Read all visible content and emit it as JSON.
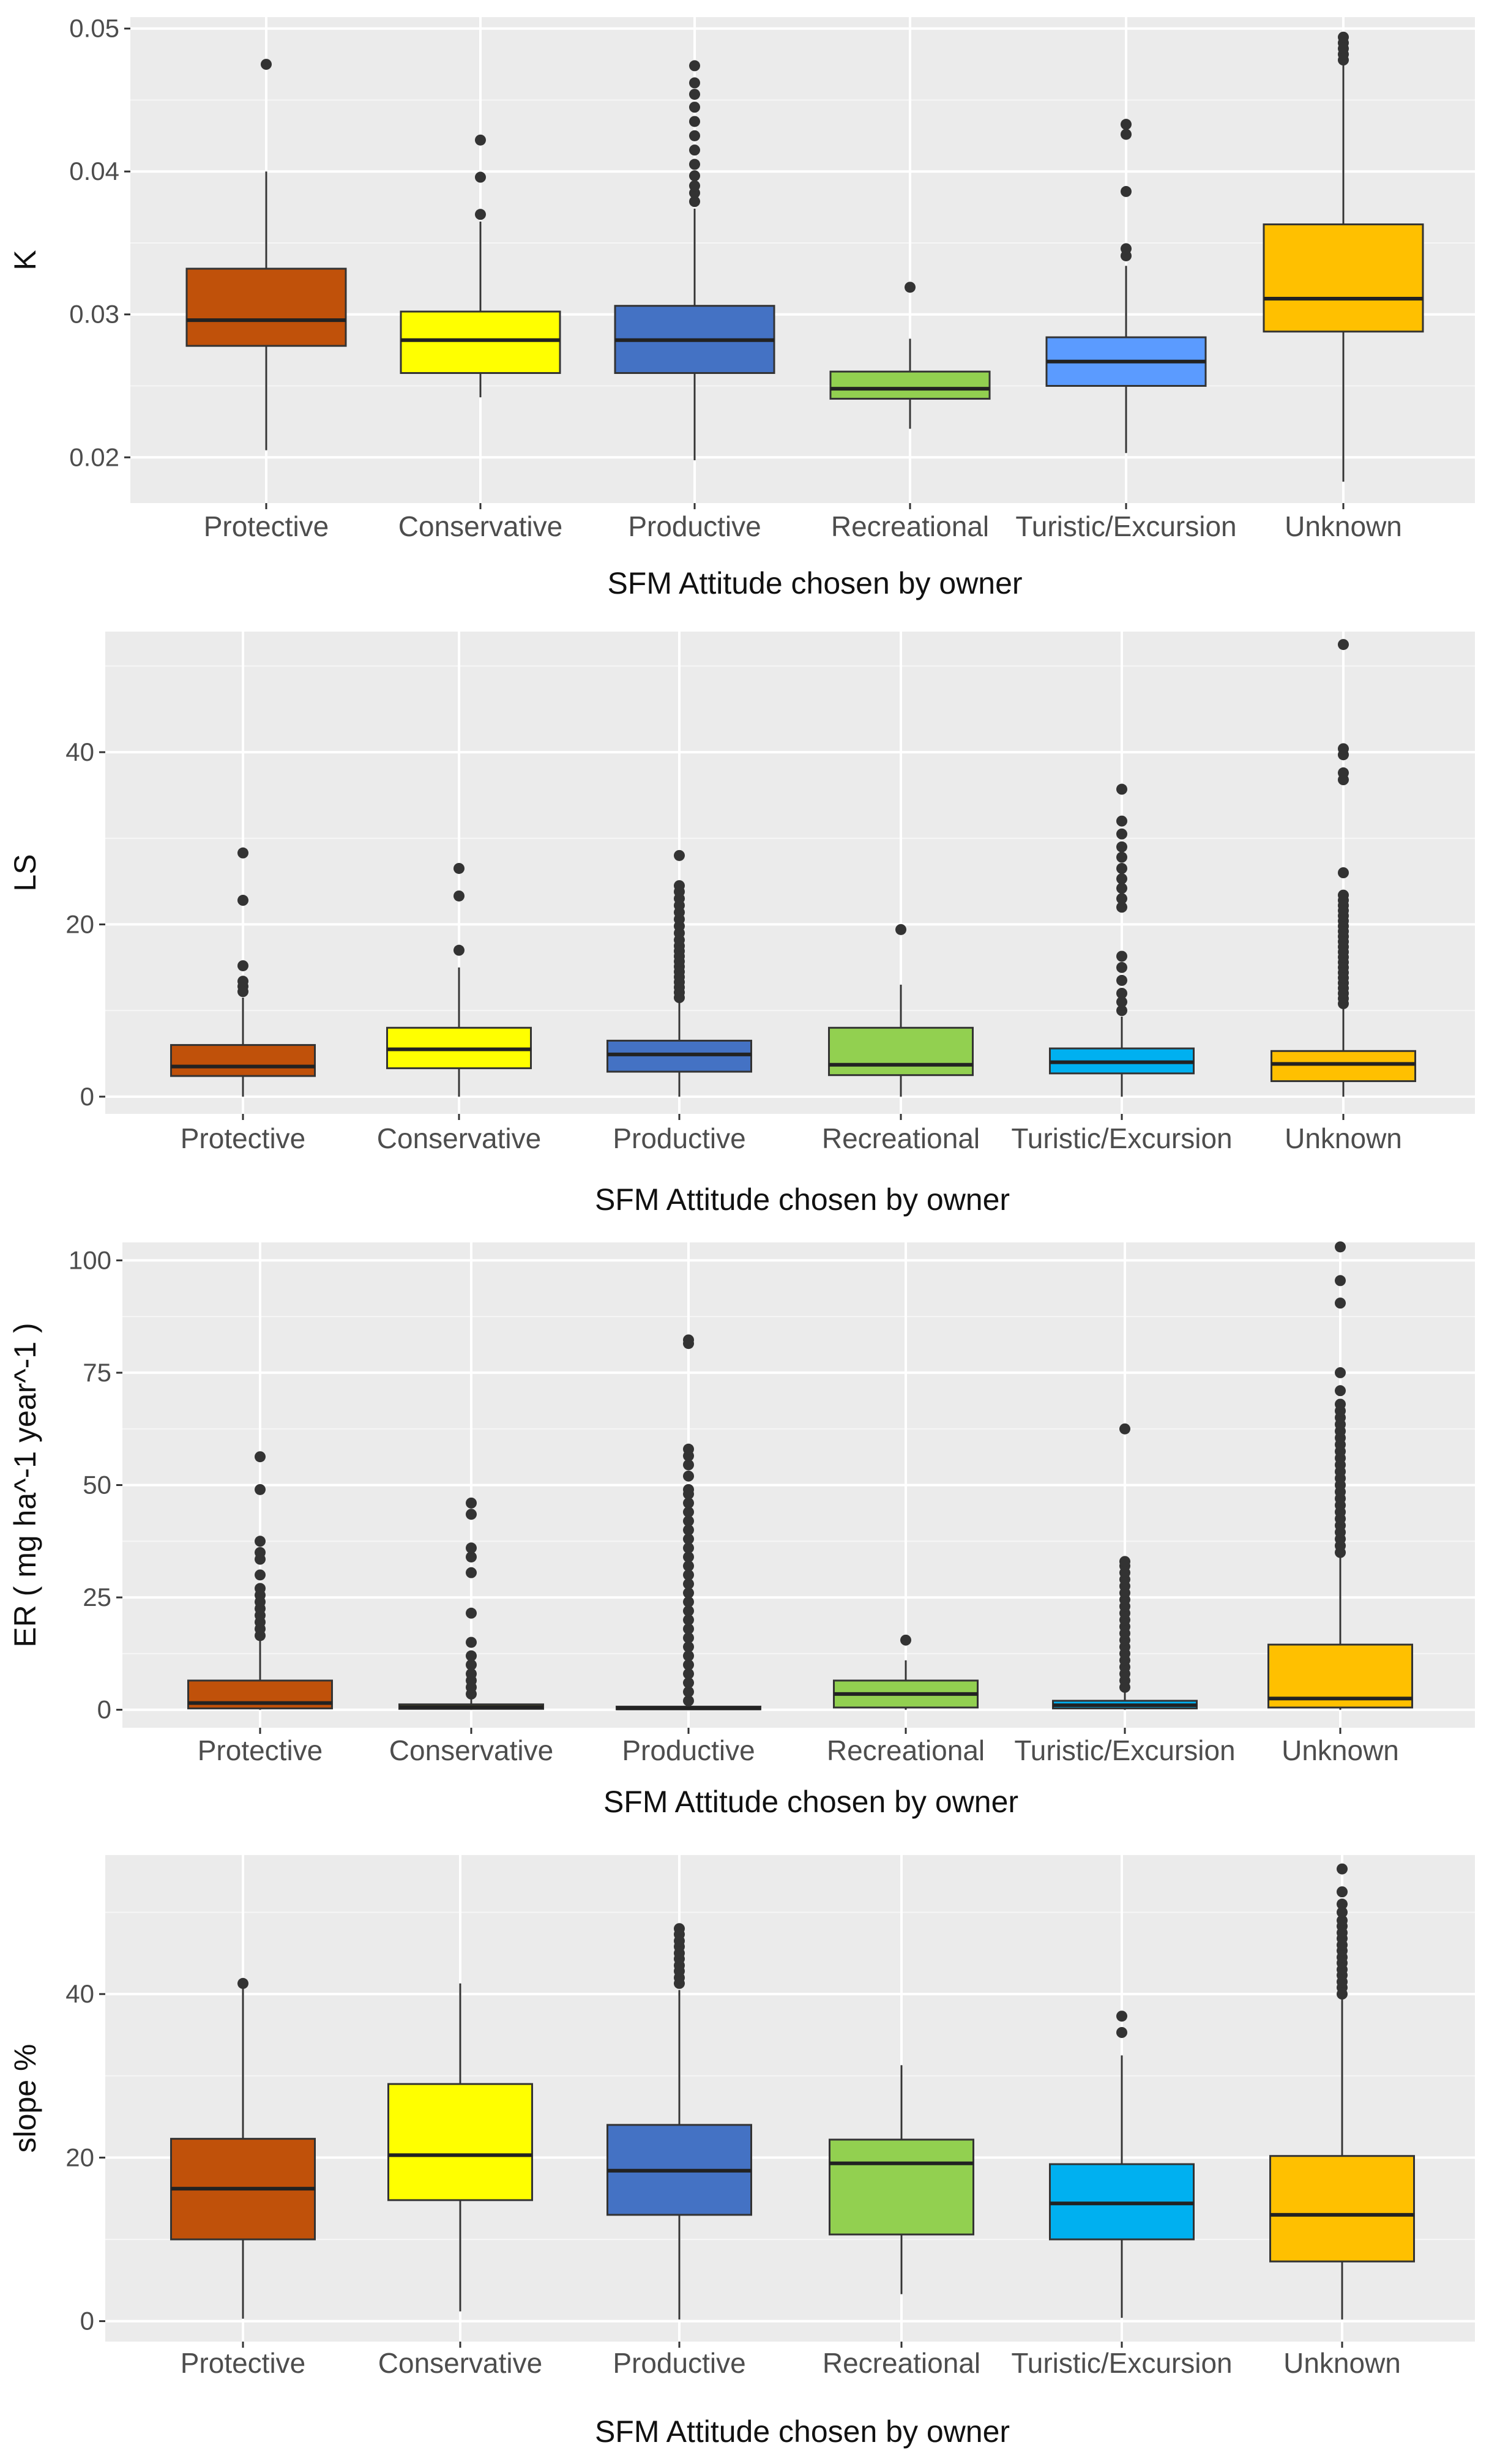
{
  "chart_data": [
    {
      "type": "box",
      "ylabel": "K",
      "xlabel": "SFM Attitude chosen by owner",
      "categories": [
        "Protective",
        "Conservative",
        "Productive",
        "Recreational",
        "Turistic/Excursion",
        "Unknown"
      ],
      "colors": [
        "#c0510a",
        "#ffff00",
        "#4472c4",
        "#92d050",
        "#5b9bff",
        "#ffc000"
      ],
      "ylim": [
        0.0168,
        0.0508
      ],
      "yticks": [
        0.02,
        0.03,
        0.04,
        0.05
      ],
      "yticklabels": [
        "0.02",
        "0.03",
        "0.04",
        "0.05"
      ],
      "boxes": [
        {
          "q1": 0.0278,
          "median": 0.0296,
          "q3": 0.0332,
          "whisker_low": 0.0205,
          "whisker_high": 0.04,
          "outliers": [
            0.0475
          ]
        },
        {
          "q1": 0.0259,
          "median": 0.0282,
          "q3": 0.0302,
          "whisker_low": 0.0242,
          "whisker_high": 0.0365,
          "outliers": [
            0.037,
            0.0396,
            0.0422
          ]
        },
        {
          "q1": 0.0259,
          "median": 0.0282,
          "q3": 0.0306,
          "whisker_low": 0.0198,
          "whisker_high": 0.0374,
          "outliers": [
            0.0379,
            0.0385,
            0.039,
            0.0397,
            0.0405,
            0.0415,
            0.0425,
            0.0435,
            0.0445,
            0.0454,
            0.0462,
            0.0474
          ]
        },
        {
          "q1": 0.0241,
          "median": 0.0248,
          "q3": 0.026,
          "whisker_low": 0.022,
          "whisker_high": 0.0283,
          "outliers": [
            0.0319
          ]
        },
        {
          "q1": 0.025,
          "median": 0.0267,
          "q3": 0.0284,
          "whisker_low": 0.0203,
          "whisker_high": 0.0334,
          "outliers": [
            0.0341,
            0.0346,
            0.0386,
            0.0426,
            0.0433
          ]
        },
        {
          "q1": 0.0288,
          "median": 0.0311,
          "q3": 0.0363,
          "whisker_low": 0.0183,
          "whisker_high": 0.0475,
          "outliers": [
            0.0478,
            0.0482,
            0.0486,
            0.049,
            0.0494
          ]
        }
      ]
    },
    {
      "type": "box",
      "ylabel": "LS",
      "xlabel": "SFM Attitude chosen by owner",
      "categories": [
        "Protective",
        "Conservative",
        "Productive",
        "Recreational",
        "Turistic/Excursion",
        "Unknown"
      ],
      "colors": [
        "#c0510a",
        "#ffff00",
        "#4472c4",
        "#92d050",
        "#00b0f0",
        "#ffc000"
      ],
      "ylim": [
        -2,
        54
      ],
      "yticks": [
        0,
        20,
        40
      ],
      "yticklabels": [
        "0",
        "20",
        "40"
      ],
      "boxes": [
        {
          "q1": 2.4,
          "median": 3.5,
          "q3": 6.0,
          "whisker_low": 0,
          "whisker_high": 11.5,
          "outliers": [
            12.2,
            12.8,
            13.4,
            15.2,
            22.8,
            28.3
          ]
        },
        {
          "q1": 3.3,
          "median": 5.5,
          "q3": 8.0,
          "whisker_low": 0,
          "whisker_high": 15,
          "outliers": [
            17.0,
            23.3,
            26.5
          ]
        },
        {
          "q1": 2.9,
          "median": 4.9,
          "q3": 6.5,
          "whisker_low": 0,
          "whisker_high": 11,
          "outliers": [
            11.5,
            12.1,
            12.7,
            13.3,
            13.9,
            14.5,
            15.1,
            15.7,
            16.3,
            16.9,
            17.5,
            18.2,
            19.0,
            19.8,
            20.6,
            21.4,
            22.2,
            23.0,
            23.8,
            24.5,
            28.0
          ]
        },
        {
          "q1": 2.5,
          "median": 3.7,
          "q3": 8.0,
          "whisker_low": 0,
          "whisker_high": 13,
          "outliers": [
            19.4
          ]
        },
        {
          "q1": 2.7,
          "median": 4.0,
          "q3": 5.6,
          "whisker_low": 0,
          "whisker_high": 9.3,
          "outliers": [
            10.0,
            11.0,
            12.0,
            13.5,
            15.0,
            16.3,
            22.0,
            23.0,
            24.2,
            25.3,
            26.5,
            27.8,
            29.0,
            30.5,
            32.0,
            35.7
          ]
        },
        {
          "q1": 1.8,
          "median": 3.8,
          "q3": 5.3,
          "whisker_low": 0,
          "whisker_high": 10.4,
          "outliers": [
            10.8,
            11.4,
            12.0,
            12.6,
            13.2,
            13.8,
            14.4,
            15.0,
            15.6,
            16.2,
            16.8,
            17.4,
            18.0,
            18.6,
            19.2,
            19.8,
            20.4,
            21.0,
            21.6,
            22.2,
            22.8,
            23.4,
            26.0,
            36.8,
            37.6,
            39.7,
            40.4,
            52.5
          ]
        }
      ]
    },
    {
      "type": "box",
      "ylabel": "ER ( mg ha^-1 year^-1 )",
      "xlabel": "SFM Attitude chosen by owner",
      "categories": [
        "Protective",
        "Conservative",
        "Productive",
        "Recreational",
        "Turistic/Excursion",
        "Unknown"
      ],
      "colors": [
        "#c0510a",
        "#ffff00",
        "#4472c4",
        "#92d050",
        "#00b0f0",
        "#ffc000"
      ],
      "ylim": [
        -4,
        104
      ],
      "yticks": [
        0,
        25,
        50,
        75,
        100
      ],
      "yticklabels": [
        "0",
        "25",
        "50",
        "75",
        "100"
      ],
      "boxes": [
        {
          "q1": 0.3,
          "median": 1.5,
          "q3": 6.5,
          "whisker_low": 0,
          "whisker_high": 15.5,
          "outliers": [
            16.5,
            18.0,
            19.5,
            21.0,
            22.5,
            24.0,
            25.5,
            27.0,
            30.0,
            33.5,
            35.0,
            37.5,
            49.0,
            56.3
          ]
        },
        {
          "q1": 0.2,
          "median": 0.6,
          "q3": 1.2,
          "whisker_low": 0,
          "whisker_high": 2.5,
          "outliers": [
            3.5,
            5.0,
            6.5,
            8.0,
            10.0,
            12.0,
            15.0,
            21.5,
            30.5,
            34.0,
            36.0,
            43.5,
            46.0
          ]
        },
        {
          "q1": 0.1,
          "median": 0.3,
          "q3": 0.7,
          "whisker_low": 0,
          "whisker_high": 1.5,
          "outliers": [
            2,
            4,
            6,
            8,
            10,
            12,
            14,
            16,
            18,
            20,
            22,
            24,
            26,
            28,
            30,
            32,
            34,
            36,
            38,
            40,
            42,
            44,
            46,
            48,
            49,
            52,
            54.5,
            56.5,
            58,
            81.5,
            82.3
          ]
        },
        {
          "q1": 0.5,
          "median": 3.5,
          "q3": 6.5,
          "whisker_low": 0,
          "whisker_high": 11,
          "outliers": [
            15.5
          ]
        },
        {
          "q1": 0.3,
          "median": 1.0,
          "q3": 2.0,
          "whisker_low": 0,
          "whisker_high": 4.0,
          "outliers": [
            5,
            6.5,
            8,
            9.5,
            11,
            12.5,
            14,
            15.5,
            17,
            18.5,
            20,
            21.5,
            23,
            24.5,
            26,
            27.5,
            29,
            30.5,
            32,
            33,
            62.5
          ]
        },
        {
          "q1": 0.5,
          "median": 2.5,
          "q3": 14.5,
          "whisker_low": 0,
          "whisker_high": 34,
          "outliers": [
            35,
            36.5,
            38,
            39.5,
            41,
            42.5,
            44,
            45.5,
            47,
            48.5,
            50,
            51.5,
            53,
            54.5,
            56,
            57.5,
            59,
            60.5,
            62,
            63.5,
            65,
            66.5,
            68,
            71,
            75,
            90.5,
            95.5,
            103
          ]
        }
      ]
    },
    {
      "type": "box",
      "ylabel": "slope %",
      "xlabel": "SFM Attitude chosen by owner",
      "categories": [
        "Protective",
        "Conservative",
        "Productive",
        "Recreational",
        "Turistic/Excursion",
        "Unknown"
      ],
      "colors": [
        "#c0510a",
        "#ffff00",
        "#4472c4",
        "#92d050",
        "#00b0f0",
        "#ffc000"
      ],
      "ylim": [
        -2.5,
        57
      ],
      "yticks": [
        0,
        20,
        40
      ],
      "yticklabels": [
        "0",
        "20",
        "40"
      ],
      "boxes": [
        {
          "q1": 10.0,
          "median": 16.2,
          "q3": 22.3,
          "whisker_low": 0.3,
          "whisker_high": 41,
          "outliers": [
            41.3
          ]
        },
        {
          "q1": 14.8,
          "median": 20.3,
          "q3": 29.0,
          "whisker_low": 1.2,
          "whisker_high": 41.3,
          "outliers": []
        },
        {
          "q1": 13.0,
          "median": 18.4,
          "q3": 24.0,
          "whisker_low": 0.2,
          "whisker_high": 40.5,
          "outliers": [
            41.3,
            42.0,
            42.8,
            43.5,
            44.3,
            45.0,
            45.8,
            46.5,
            47.3,
            48.0
          ]
        },
        {
          "q1": 10.6,
          "median": 19.3,
          "q3": 22.2,
          "whisker_low": 3.3,
          "whisker_high": 31.3,
          "outliers": []
        },
        {
          "q1": 10.0,
          "median": 14.4,
          "q3": 19.2,
          "whisker_low": 0.4,
          "whisker_high": 32.5,
          "outliers": [
            35.3,
            37.3
          ]
        },
        {
          "q1": 7.3,
          "median": 13.0,
          "q3": 20.2,
          "whisker_low": 0.2,
          "whisker_high": 39.5,
          "outliers": [
            40.0,
            40.8,
            41.5,
            42.3,
            43.0,
            43.8,
            44.5,
            45.3,
            46.0,
            46.8,
            47.5,
            48.3,
            49.0,
            50.0,
            51.0,
            52.5,
            55.3
          ]
        }
      ]
    }
  ]
}
